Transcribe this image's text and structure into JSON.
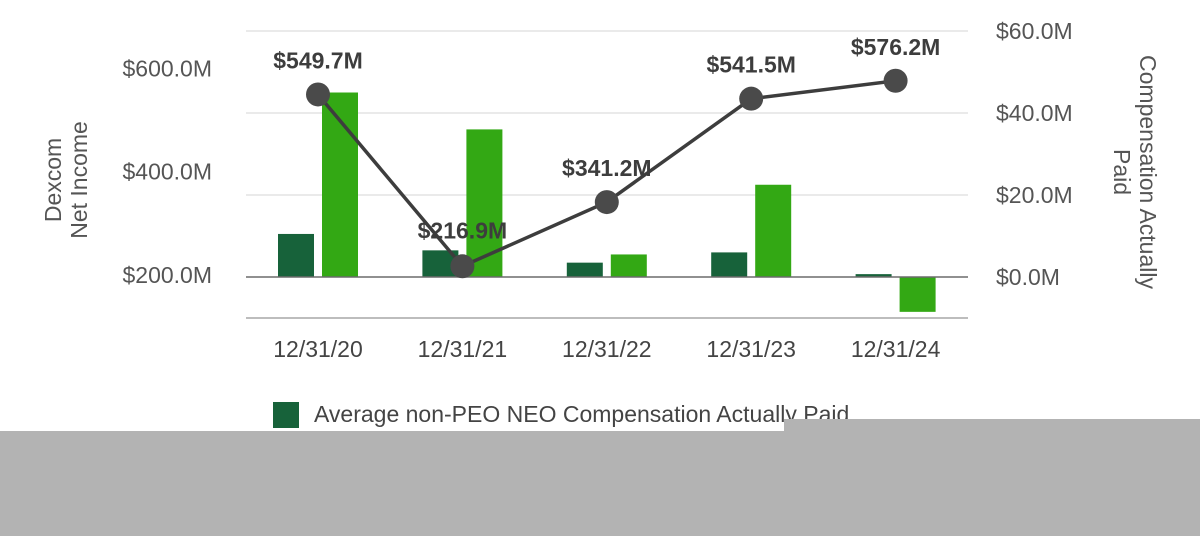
{
  "chart_data": {
    "type": "bar",
    "categories": [
      "12/31/20",
      "12/31/21",
      "12/31/22",
      "12/31/23",
      "12/31/24"
    ],
    "left_axis": {
      "title_lines": [
        "Dexcom",
        "Net Income"
      ],
      "ticks": [
        "$200.0M",
        "$400.0M",
        "$600.0M"
      ]
    },
    "right_axis": {
      "title_lines": [
        "Compensation Actually",
        "Paid"
      ],
      "ticks": [
        "$0.0M",
        "$20.0M",
        "$40.0M",
        "$60.0M"
      ],
      "ylim": [
        -10,
        60
      ]
    },
    "series": [
      {
        "name": "Average non-PEO NEO Compensation Actually Paid",
        "kind": "bar",
        "axis": "right",
        "color": "#17623a",
        "values": [
          10.5,
          6.5,
          3.5,
          6.0,
          0.7
        ]
      },
      {
        "kind": "bar",
        "axis": "right",
        "color": "#33a814",
        "values": [
          45.0,
          36.0,
          5.5,
          22.5,
          -8.5
        ]
      },
      {
        "kind": "line",
        "axis": "left",
        "color": "#3d3d3d",
        "values": [
          549.7,
          216.9,
          341.2,
          541.5,
          576.2
        ],
        "labels": [
          "$549.7M",
          "$216.9M",
          "$341.2M",
          "$541.5M",
          "$576.2M"
        ]
      }
    ],
    "legend": {
      "visible_text": "Average non-PEO NEO Compensation Actually Paid",
      "swatch_color": "#17623a"
    }
  }
}
